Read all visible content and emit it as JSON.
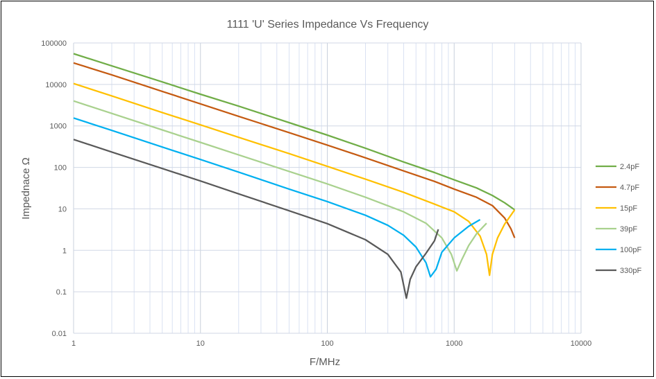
{
  "chart_data": {
    "type": "line",
    "title": "1111 'U' Series Impedance Vs Frequency",
    "xlabel": "F/MHz",
    "ylabel": "Impednace Ω",
    "x_scale": "log",
    "y_scale": "log",
    "xlim": [
      1,
      10000
    ],
    "ylim": [
      0.01,
      100000
    ],
    "x_ticks": [
      "1",
      "10",
      "100",
      "1000",
      "10000"
    ],
    "y_ticks": [
      "0.01",
      "0.1",
      "1",
      "10",
      "100",
      "1000",
      "10000",
      "100000"
    ],
    "grid": true,
    "legend_position": "right",
    "series": [
      {
        "name": "2.4pF",
        "color": "#70ad47",
        "points": [
          [
            1,
            55000
          ],
          [
            2,
            28000
          ],
          [
            5,
            11500
          ],
          [
            10,
            5800
          ],
          [
            20,
            3000
          ],
          [
            50,
            1200
          ],
          [
            100,
            600
          ],
          [
            200,
            290
          ],
          [
            400,
            135
          ],
          [
            700,
            75
          ],
          [
            1000,
            50
          ],
          [
            1500,
            32
          ],
          [
            2000,
            21
          ],
          [
            2500,
            14
          ],
          [
            3000,
            9.5
          ]
        ]
      },
      {
        "name": "4.7pF",
        "color": "#c55a11",
        "points": [
          [
            1,
            33000
          ],
          [
            2,
            17000
          ],
          [
            5,
            6800
          ],
          [
            10,
            3400
          ],
          [
            20,
            1700
          ],
          [
            50,
            690
          ],
          [
            100,
            345
          ],
          [
            200,
            170
          ],
          [
            400,
            82
          ],
          [
            700,
            46
          ],
          [
            1000,
            30
          ],
          [
            1500,
            19
          ],
          [
            2000,
            12
          ],
          [
            2500,
            6
          ],
          [
            2800,
            3.3
          ],
          [
            3000,
            2
          ]
        ]
      },
      {
        "name": "15pF",
        "color": "#ffc000",
        "points": [
          [
            1,
            10500
          ],
          [
            2,
            5300
          ],
          [
            5,
            2100
          ],
          [
            10,
            1060
          ],
          [
            20,
            530
          ],
          [
            50,
            215
          ],
          [
            100,
            106
          ],
          [
            200,
            52
          ],
          [
            400,
            25
          ],
          [
            700,
            13
          ],
          [
            1000,
            8.5
          ],
          [
            1300,
            5
          ],
          [
            1600,
            2.2
          ],
          [
            1800,
            0.8
          ],
          [
            1900,
            0.25
          ],
          [
            2000,
            0.8
          ],
          [
            2200,
            2
          ],
          [
            2500,
            4.3
          ],
          [
            3000,
            9.5
          ]
        ]
      },
      {
        "name": "39pF",
        "color": "#a9d18e",
        "points": [
          [
            1,
            4000
          ],
          [
            2,
            2000
          ],
          [
            5,
            800
          ],
          [
            10,
            400
          ],
          [
            20,
            200
          ],
          [
            50,
            80
          ],
          [
            100,
            40
          ],
          [
            200,
            19
          ],
          [
            400,
            8.5
          ],
          [
            600,
            4.5
          ],
          [
            800,
            2
          ],
          [
            950,
            0.8
          ],
          [
            1050,
            0.32
          ],
          [
            1150,
            0.6
          ],
          [
            1300,
            1.3
          ],
          [
            1500,
            2.5
          ],
          [
            1800,
            4.5
          ]
        ]
      },
      {
        "name": "100pF",
        "color": "#00b0f0",
        "points": [
          [
            1,
            1550
          ],
          [
            2,
            780
          ],
          [
            5,
            310
          ],
          [
            10,
            155
          ],
          [
            20,
            77
          ],
          [
            50,
            30
          ],
          [
            100,
            15
          ],
          [
            200,
            7
          ],
          [
            300,
            4
          ],
          [
            400,
            2.3
          ],
          [
            500,
            1.2
          ],
          [
            600,
            0.5
          ],
          [
            650,
            0.23
          ],
          [
            720,
            0.35
          ],
          [
            800,
            0.9
          ],
          [
            1000,
            2
          ],
          [
            1300,
            3.8
          ],
          [
            1600,
            5.5
          ]
        ]
      },
      {
        "name": "330pF",
        "color": "#595959",
        "points": [
          [
            1,
            470
          ],
          [
            2,
            235
          ],
          [
            5,
            94
          ],
          [
            10,
            47
          ],
          [
            20,
            23
          ],
          [
            50,
            9
          ],
          [
            100,
            4.4
          ],
          [
            200,
            1.8
          ],
          [
            300,
            0.8
          ],
          [
            380,
            0.3
          ],
          [
            420,
            0.07
          ],
          [
            450,
            0.2
          ],
          [
            500,
            0.4
          ],
          [
            600,
            0.85
          ],
          [
            700,
            1.7
          ],
          [
            750,
            3.2
          ]
        ]
      }
    ]
  }
}
